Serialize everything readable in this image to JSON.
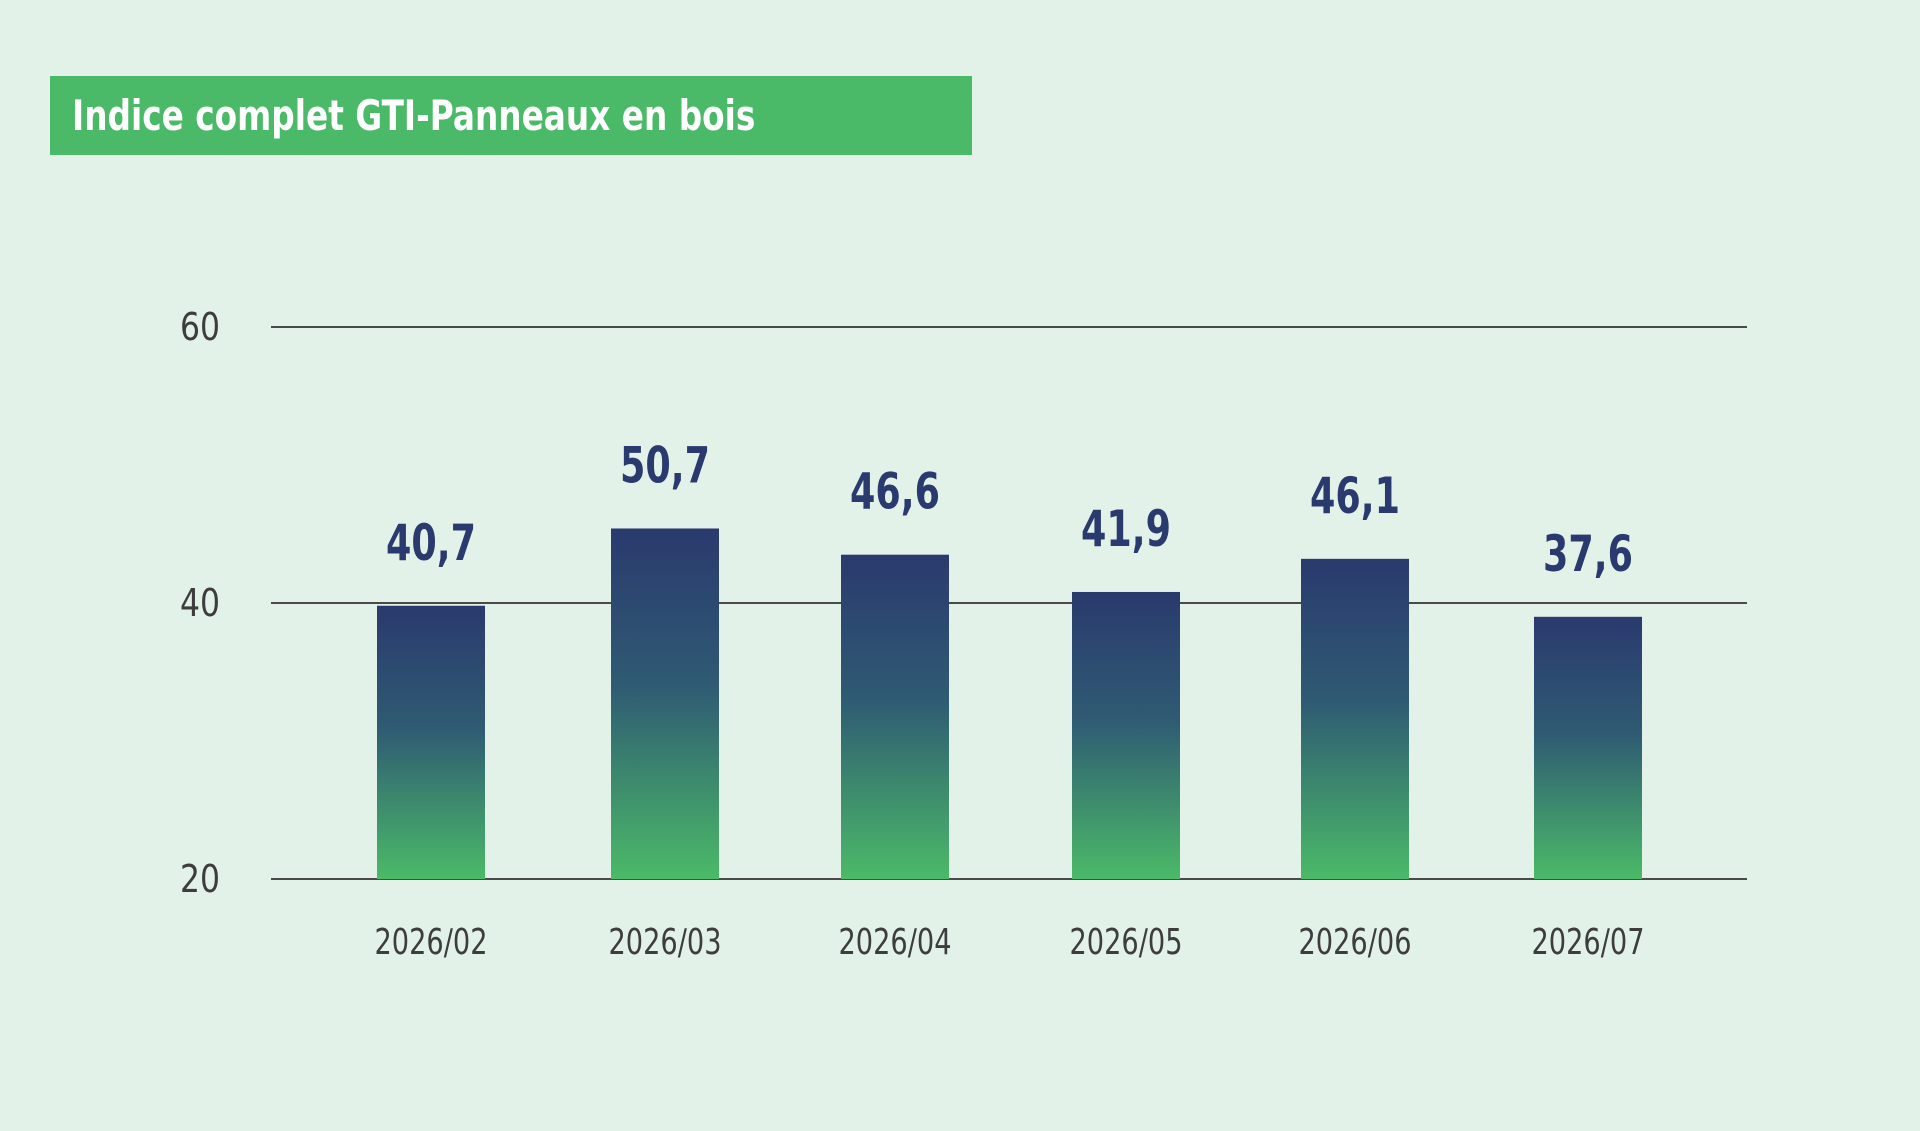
{
  "chart_data": {
    "type": "bar",
    "title": "Indice complet GTI-Panneaux en bois",
    "categories": [
      "2026/02",
      "2026/03",
      "2026/04",
      "2026/05",
      "2026/06",
      "2026/07"
    ],
    "values": [
      40.7,
      50.7,
      46.6,
      41.9,
      46.1,
      37.6
    ],
    "value_labels": [
      "40,7",
      "50,7",
      "46,6",
      "41,9",
      "46,1",
      "37,6"
    ],
    "bar_heights_on_axis": [
      39.8,
      45.4,
      43.5,
      40.8,
      43.2,
      39.0
    ],
    "yticks": [
      "20",
      "40",
      "60"
    ],
    "ylim": [
      20,
      60
    ],
    "grid": true,
    "legend": "none",
    "colors": {
      "bar_top": "#2a3a6e",
      "bar_bottom": "#4bba68",
      "value_text": "#2a3a6e",
      "title_bg": "#4bba68",
      "background": "#e3f2e8",
      "gridline": "#4a4a4a"
    }
  }
}
